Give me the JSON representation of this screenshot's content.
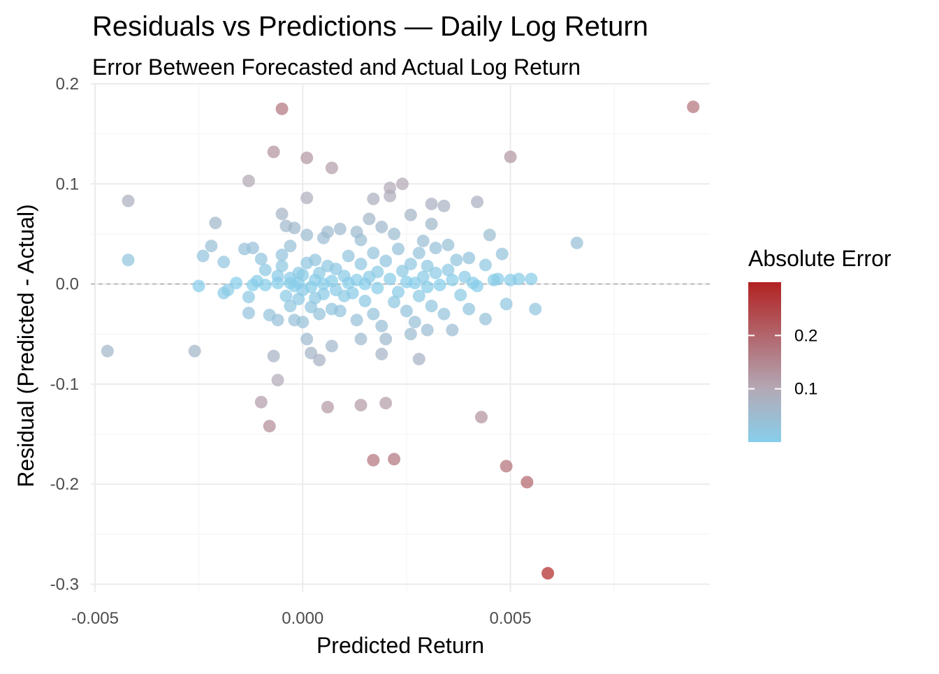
{
  "chart_data": {
    "type": "scatter",
    "title": "Residuals vs Predictions — Daily Log Return",
    "subtitle": "Error Between Forecasted and Actual Log Return",
    "xlabel": "Predicted Return",
    "ylabel": "Residual (Predicted - Actual)",
    "xlim": [
      -0.0051,
      0.0098
    ],
    "ylim": [
      -0.308,
      0.2
    ],
    "x_ticks": [
      -0.005,
      0.0,
      0.005
    ],
    "x_tick_labels": [
      "-0.005",
      "0.000",
      "0.005"
    ],
    "y_ticks": [
      -0.3,
      -0.2,
      -0.1,
      0.0,
      0.1,
      0.2
    ],
    "y_tick_labels": [
      "-0.3",
      "-0.2",
      "-0.1",
      "0.0",
      "0.1",
      "0.2"
    ],
    "grid": true,
    "reference_line": {
      "y": 0,
      "style": "dashed",
      "color": "#aaaaaa"
    },
    "legend": {
      "title": "Absolute Error",
      "placement": "right",
      "type": "colorbar",
      "range": [
        0,
        0.3
      ],
      "ticks": [
        0.1,
        0.2
      ],
      "tick_labels": [
        "0.1",
        "0.2"
      ],
      "color_low": "#87CEEB",
      "color_mid": "#B3A9B6",
      "color_high": "#B22222"
    },
    "points": [
      [
        -0.0047,
        -0.067
      ],
      [
        -0.0042,
        0.083
      ],
      [
        -0.0042,
        0.024
      ],
      [
        -0.0026,
        -0.067
      ],
      [
        -0.0025,
        -0.002
      ],
      [
        -0.0024,
        0.028
      ],
      [
        -0.0022,
        0.038
      ],
      [
        -0.0021,
        0.061
      ],
      [
        -0.0019,
        0.022
      ],
      [
        -0.0019,
        -0.009
      ],
      [
        -0.0018,
        -0.006
      ],
      [
        -0.0016,
        0.001
      ],
      [
        -0.0014,
        0.035
      ],
      [
        -0.0013,
        -0.013
      ],
      [
        -0.0013,
        -0.029
      ],
      [
        -0.0013,
        0.103
      ],
      [
        -0.0012,
        0.036
      ],
      [
        -0.0012,
        -0.001
      ],
      [
        -0.0011,
        0.003
      ],
      [
        -0.001,
        0.025
      ],
      [
        -0.001,
        -0.118
      ],
      [
        -0.0009,
        -0.001
      ],
      [
        -0.0009,
        0.014
      ],
      [
        -0.0008,
        -0.031
      ],
      [
        -0.0008,
        -0.142
      ],
      [
        -0.0007,
        -0.072
      ],
      [
        -0.0007,
        0.132
      ],
      [
        -0.0006,
        -0.096
      ],
      [
        -0.0006,
        -0.036
      ],
      [
        -0.0006,
        0.008
      ],
      [
        -0.0006,
        0.001
      ],
      [
        -0.0005,
        0.07
      ],
      [
        -0.0005,
        0.175
      ],
      [
        -0.0005,
        0.018
      ],
      [
        -0.0005,
        0.029
      ],
      [
        -0.0004,
        -0.012
      ],
      [
        -0.0004,
        0.058
      ],
      [
        -0.0003,
        0.001
      ],
      [
        -0.0003,
        -0.022
      ],
      [
        -0.0003,
        0.038
      ],
      [
        -0.0003,
        0.006
      ],
      [
        -0.0002,
        0.056
      ],
      [
        -0.0002,
        -0.036
      ],
      [
        -0.0002,
        -0.002
      ],
      [
        -0.0001,
        -0.015
      ],
      [
        -0.0001,
        0.001
      ],
      [
        -0.0001,
        0.011
      ],
      [
        0.0,
        -0.038
      ],
      [
        0.0,
        -0.006
      ],
      [
        0.0,
        0.009
      ],
      [
        0.0001,
        0.086
      ],
      [
        0.0001,
        -0.055
      ],
      [
        0.0001,
        0.126
      ],
      [
        0.0001,
        0.021
      ],
      [
        0.0001,
        0.049
      ],
      [
        0.0002,
        -0.069
      ],
      [
        0.0002,
        -0.023
      ],
      [
        0.0002,
        -0.003
      ],
      [
        0.0003,
        0.004
      ],
      [
        0.0003,
        -0.014
      ],
      [
        0.0003,
        0.024
      ],
      [
        0.0004,
        -0.076
      ],
      [
        0.0004,
        -0.03
      ],
      [
        0.0004,
        0.011
      ],
      [
        0.0005,
        0.0
      ],
      [
        0.0005,
        -0.01
      ],
      [
        0.0005,
        0.046
      ],
      [
        0.0006,
        -0.123
      ],
      [
        0.0006,
        0.018
      ],
      [
        0.0006,
        0.052
      ],
      [
        0.0007,
        0.116
      ],
      [
        0.0007,
        -0.062
      ],
      [
        0.0007,
        -0.025
      ],
      [
        0.0007,
        0.003
      ],
      [
        0.0008,
        0.015
      ],
      [
        0.0008,
        -0.006
      ],
      [
        0.0009,
        0.055
      ],
      [
        0.0009,
        -0.027
      ],
      [
        0.001,
        0.008
      ],
      [
        0.001,
        -0.012
      ],
      [
        0.0011,
        0.028
      ],
      [
        0.0011,
        0.001
      ],
      [
        0.0012,
        -0.009
      ],
      [
        0.0013,
        0.052
      ],
      [
        0.0013,
        -0.036
      ],
      [
        0.0013,
        0.004
      ],
      [
        0.0014,
        -0.055
      ],
      [
        0.0014,
        -0.121
      ],
      [
        0.0014,
        0.044
      ],
      [
        0.0014,
        0.02
      ],
      [
        0.0015,
        0.0
      ],
      [
        0.0015,
        -0.017
      ],
      [
        0.0016,
        0.065
      ],
      [
        0.0016,
        0.007
      ],
      [
        0.0017,
        0.085
      ],
      [
        0.0017,
        -0.176
      ],
      [
        0.0017,
        -0.03
      ],
      [
        0.0017,
        0.031
      ],
      [
        0.0018,
        -0.004
      ],
      [
        0.0018,
        0.012
      ],
      [
        0.0019,
        0.057
      ],
      [
        0.0019,
        -0.042
      ],
      [
        0.0019,
        -0.07
      ],
      [
        0.002,
        0.023
      ],
      [
        0.002,
        -0.119
      ],
      [
        0.002,
        -0.055
      ],
      [
        0.0021,
        0.088
      ],
      [
        0.0021,
        0.096
      ],
      [
        0.0021,
        0.005
      ],
      [
        0.0022,
        -0.175
      ],
      [
        0.0022,
        0.05
      ],
      [
        0.0022,
        -0.018
      ],
      [
        0.0023,
        0.035
      ],
      [
        0.0023,
        -0.008
      ],
      [
        0.0024,
        0.1
      ],
      [
        0.0024,
        0.013
      ],
      [
        0.0025,
        -0.027
      ],
      [
        0.0025,
        0.002
      ],
      [
        0.0026,
        0.069
      ],
      [
        0.0026,
        -0.05
      ],
      [
        0.0026,
        0.02
      ],
      [
        0.0027,
        -0.038
      ],
      [
        0.0027,
        0.001
      ],
      [
        0.0028,
        -0.075
      ],
      [
        0.0028,
        0.031
      ],
      [
        0.0028,
        -0.012
      ],
      [
        0.0029,
        0.007
      ],
      [
        0.0029,
        0.043
      ],
      [
        0.003,
        -0.046
      ],
      [
        0.003,
        0.018
      ],
      [
        0.003,
        -0.003
      ],
      [
        0.0031,
        0.06
      ],
      [
        0.0031,
        0.08
      ],
      [
        0.0031,
        -0.022
      ],
      [
        0.0032,
        0.011
      ],
      [
        0.0032,
        0.036
      ],
      [
        0.0033,
        -0.001
      ],
      [
        0.0034,
        0.078
      ],
      [
        0.0034,
        -0.03
      ],
      [
        0.0035,
        0.039
      ],
      [
        0.0035,
        0.014
      ],
      [
        0.0036,
        -0.046
      ],
      [
        0.0036,
        0.004
      ],
      [
        0.0037,
        0.024
      ],
      [
        0.0038,
        -0.011
      ],
      [
        0.0039,
        0.007
      ],
      [
        0.004,
        -0.025
      ],
      [
        0.004,
        0.026
      ],
      [
        0.0041,
        0.001
      ],
      [
        0.0042,
        0.082
      ],
      [
        0.0042,
        -0.002
      ],
      [
        0.0043,
        -0.133
      ],
      [
        0.0044,
        0.019
      ],
      [
        0.0044,
        -0.035
      ],
      [
        0.0045,
        0.049
      ],
      [
        0.0046,
        0.004
      ],
      [
        0.0047,
        0.005
      ],
      [
        0.0048,
        0.03
      ],
      [
        0.0049,
        -0.182
      ],
      [
        0.0049,
        -0.02
      ],
      [
        0.005,
        0.127
      ],
      [
        0.005,
        0.004
      ],
      [
        0.0052,
        0.005
      ],
      [
        0.0054,
        -0.198
      ],
      [
        0.0055,
        0.005
      ],
      [
        0.0056,
        -0.025
      ],
      [
        0.0059,
        -0.289
      ],
      [
        0.0066,
        0.041
      ],
      [
        0.0094,
        0.177
      ]
    ]
  }
}
